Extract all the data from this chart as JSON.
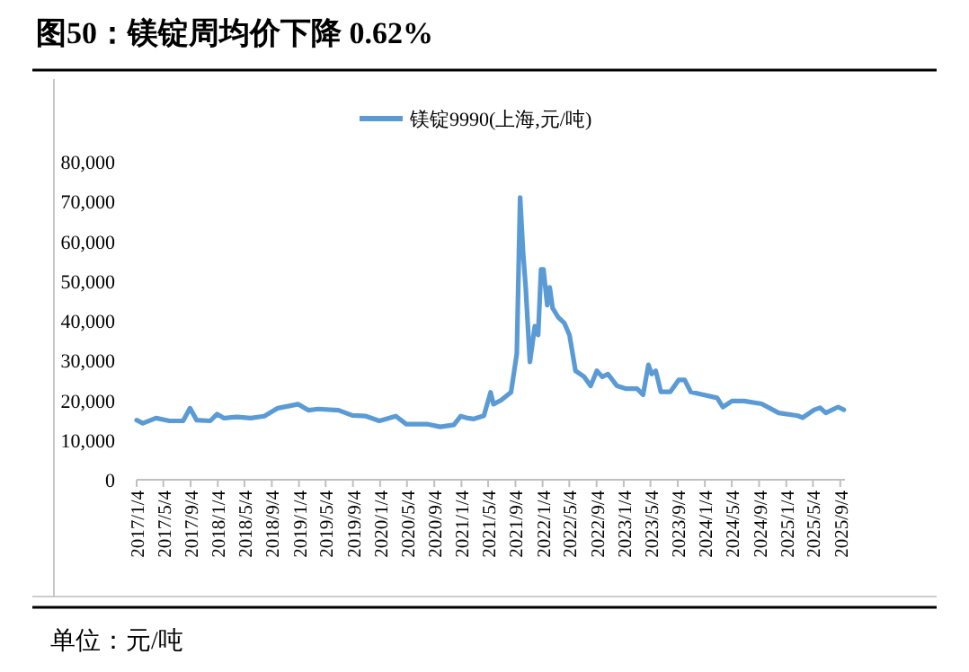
{
  "chart_data": {
    "type": "line",
    "title": "图50：镁锭周均价下降 0.62%",
    "annotations": [
      "单位：元/吨"
    ],
    "legend": "top",
    "grid": false,
    "marker": "none",
    "line_style": "solid",
    "x": [
      "2017-01-04",
      "2017-02-01",
      "2017-04-01",
      "2017-06-01",
      "2017-08-01",
      "2017-09-01",
      "2017-10-01",
      "2017-12-01",
      "2018-01-01",
      "2018-02-01",
      "2018-04-01",
      "2018-06-01",
      "2018-08-01",
      "2018-10-01",
      "2019-01-01",
      "2019-02-15",
      "2019-04-01",
      "2019-07-01",
      "2019-09-01",
      "2019-11-01",
      "2020-01-01",
      "2020-03-15",
      "2020-05-01",
      "2020-08-01",
      "2020-10-01",
      "2020-12-01",
      "2021-01-01",
      "2021-02-01",
      "2021-03-01",
      "2021-04-15",
      "2021-05-15",
      "2021-05-28",
      "2021-07-01",
      "2021-08-15",
      "2021-09-10",
      "2021-09-25",
      "2021-10-08",
      "2021-10-20",
      "2021-11-08",
      "2021-11-30",
      "2021-12-15",
      "2021-12-28",
      "2022-01-08",
      "2022-01-25",
      "2022-02-05",
      "2022-02-18",
      "2022-03-15",
      "2022-04-12",
      "2022-05-05",
      "2022-06-01",
      "2022-07-10",
      "2022-08-08",
      "2022-09-05",
      "2022-09-30",
      "2022-10-25",
      "2022-12-05",
      "2023-01-15",
      "2023-03-05",
      "2023-04-01",
      "2023-04-25",
      "2023-05-10",
      "2023-05-28",
      "2023-06-20",
      "2023-08-01",
      "2023-09-08",
      "2023-10-05",
      "2023-11-01",
      "2023-12-25",
      "2024-02-28",
      "2024-03-25",
      "2024-05-05",
      "2024-06-28",
      "2024-09-15",
      "2024-12-01",
      "2025-02-25",
      "2025-03-18",
      "2025-05-10",
      "2025-06-05",
      "2025-07-01",
      "2025-08-25",
      "2025-09-20"
    ],
    "series": [
      {
        "name": "镁锭9990(上海,元/吨)",
        "color": "#5b9bd5",
        "values": [
          15000,
          14200,
          15500,
          14800,
          14800,
          18000,
          15000,
          14800,
          16500,
          15500,
          15800,
          15500,
          16000,
          18000,
          19000,
          17500,
          17800,
          17500,
          16200,
          16000,
          14800,
          16000,
          14000,
          14000,
          13300,
          13800,
          16000,
          15500,
          15300,
          16100,
          22000,
          19000,
          20000,
          22000,
          31700,
          71000,
          57400,
          48400,
          29600,
          38600,
          36400,
          52900,
          52900,
          43900,
          48400,
          43200,
          40900,
          39400,
          36400,
          27400,
          25900,
          23600,
          27400,
          25900,
          26600,
          23600,
          22900,
          22900,
          21400,
          28900,
          26600,
          27400,
          22100,
          22100,
          25100,
          25100,
          22100,
          21400,
          20600,
          18300,
          19800,
          19800,
          19100,
          16800,
          16100,
          15600,
          17600,
          18100,
          16800,
          18300,
          17600
        ]
      }
    ],
    "xlim": [
      "2017-01-04",
      "2025-09-25"
    ],
    "xticks": [
      {
        "value": "2017-01-04",
        "label": "2017/1/4"
      },
      {
        "value": "2017-05-04",
        "label": "2017/5/4"
      },
      {
        "value": "2017-09-04",
        "label": "2017/9/4"
      },
      {
        "value": "2018-01-04",
        "label": "2018/1/4"
      },
      {
        "value": "2018-05-04",
        "label": "2018/5/4"
      },
      {
        "value": "2018-09-04",
        "label": "2018/9/4"
      },
      {
        "value": "2019-01-04",
        "label": "2019/1/4"
      },
      {
        "value": "2019-05-04",
        "label": "2019/5/4"
      },
      {
        "value": "2019-09-04",
        "label": "2019/9/4"
      },
      {
        "value": "2020-01-04",
        "label": "2020/1/4"
      },
      {
        "value": "2020-05-04",
        "label": "2020/5/4"
      },
      {
        "value": "2020-09-04",
        "label": "2020/9/4"
      },
      {
        "value": "2021-01-04",
        "label": "2021/1/4"
      },
      {
        "value": "2021-05-04",
        "label": "2021/5/4"
      },
      {
        "value": "2021-09-04",
        "label": "2021/9/4"
      },
      {
        "value": "2022-01-04",
        "label": "2022/1/4"
      },
      {
        "value": "2022-05-04",
        "label": "2022/5/4"
      },
      {
        "value": "2022-09-04",
        "label": "2022/9/4"
      },
      {
        "value": "2023-01-04",
        "label": "2023/1/4"
      },
      {
        "value": "2023-05-04",
        "label": "2023/5/4"
      },
      {
        "value": "2023-09-04",
        "label": "2023/9/4"
      },
      {
        "value": "2024-01-04",
        "label": "2024/1/4"
      },
      {
        "value": "2024-05-04",
        "label": "2024/5/4"
      },
      {
        "value": "2024-09-04",
        "label": "2024/9/4"
      },
      {
        "value": "2025-01-04",
        "label": "2025/1/4"
      },
      {
        "value": "2025-05-04",
        "label": "2025/5/4"
      },
      {
        "value": "2025-09-04",
        "label": "2025/9/4"
      }
    ],
    "ylim": [
      0,
      80000
    ],
    "yticks": [
      {
        "value": 0,
        "label": "0"
      },
      {
        "value": 10000,
        "label": "10,000"
      },
      {
        "value": 20000,
        "label": "20,000"
      },
      {
        "value": 30000,
        "label": "30,000"
      },
      {
        "value": 40000,
        "label": "40,000"
      },
      {
        "value": 50000,
        "label": "50,000"
      },
      {
        "value": 60000,
        "label": "60,000"
      },
      {
        "value": 70000,
        "label": "70,000"
      },
      {
        "value": 80000,
        "label": "80,000"
      }
    ]
  }
}
